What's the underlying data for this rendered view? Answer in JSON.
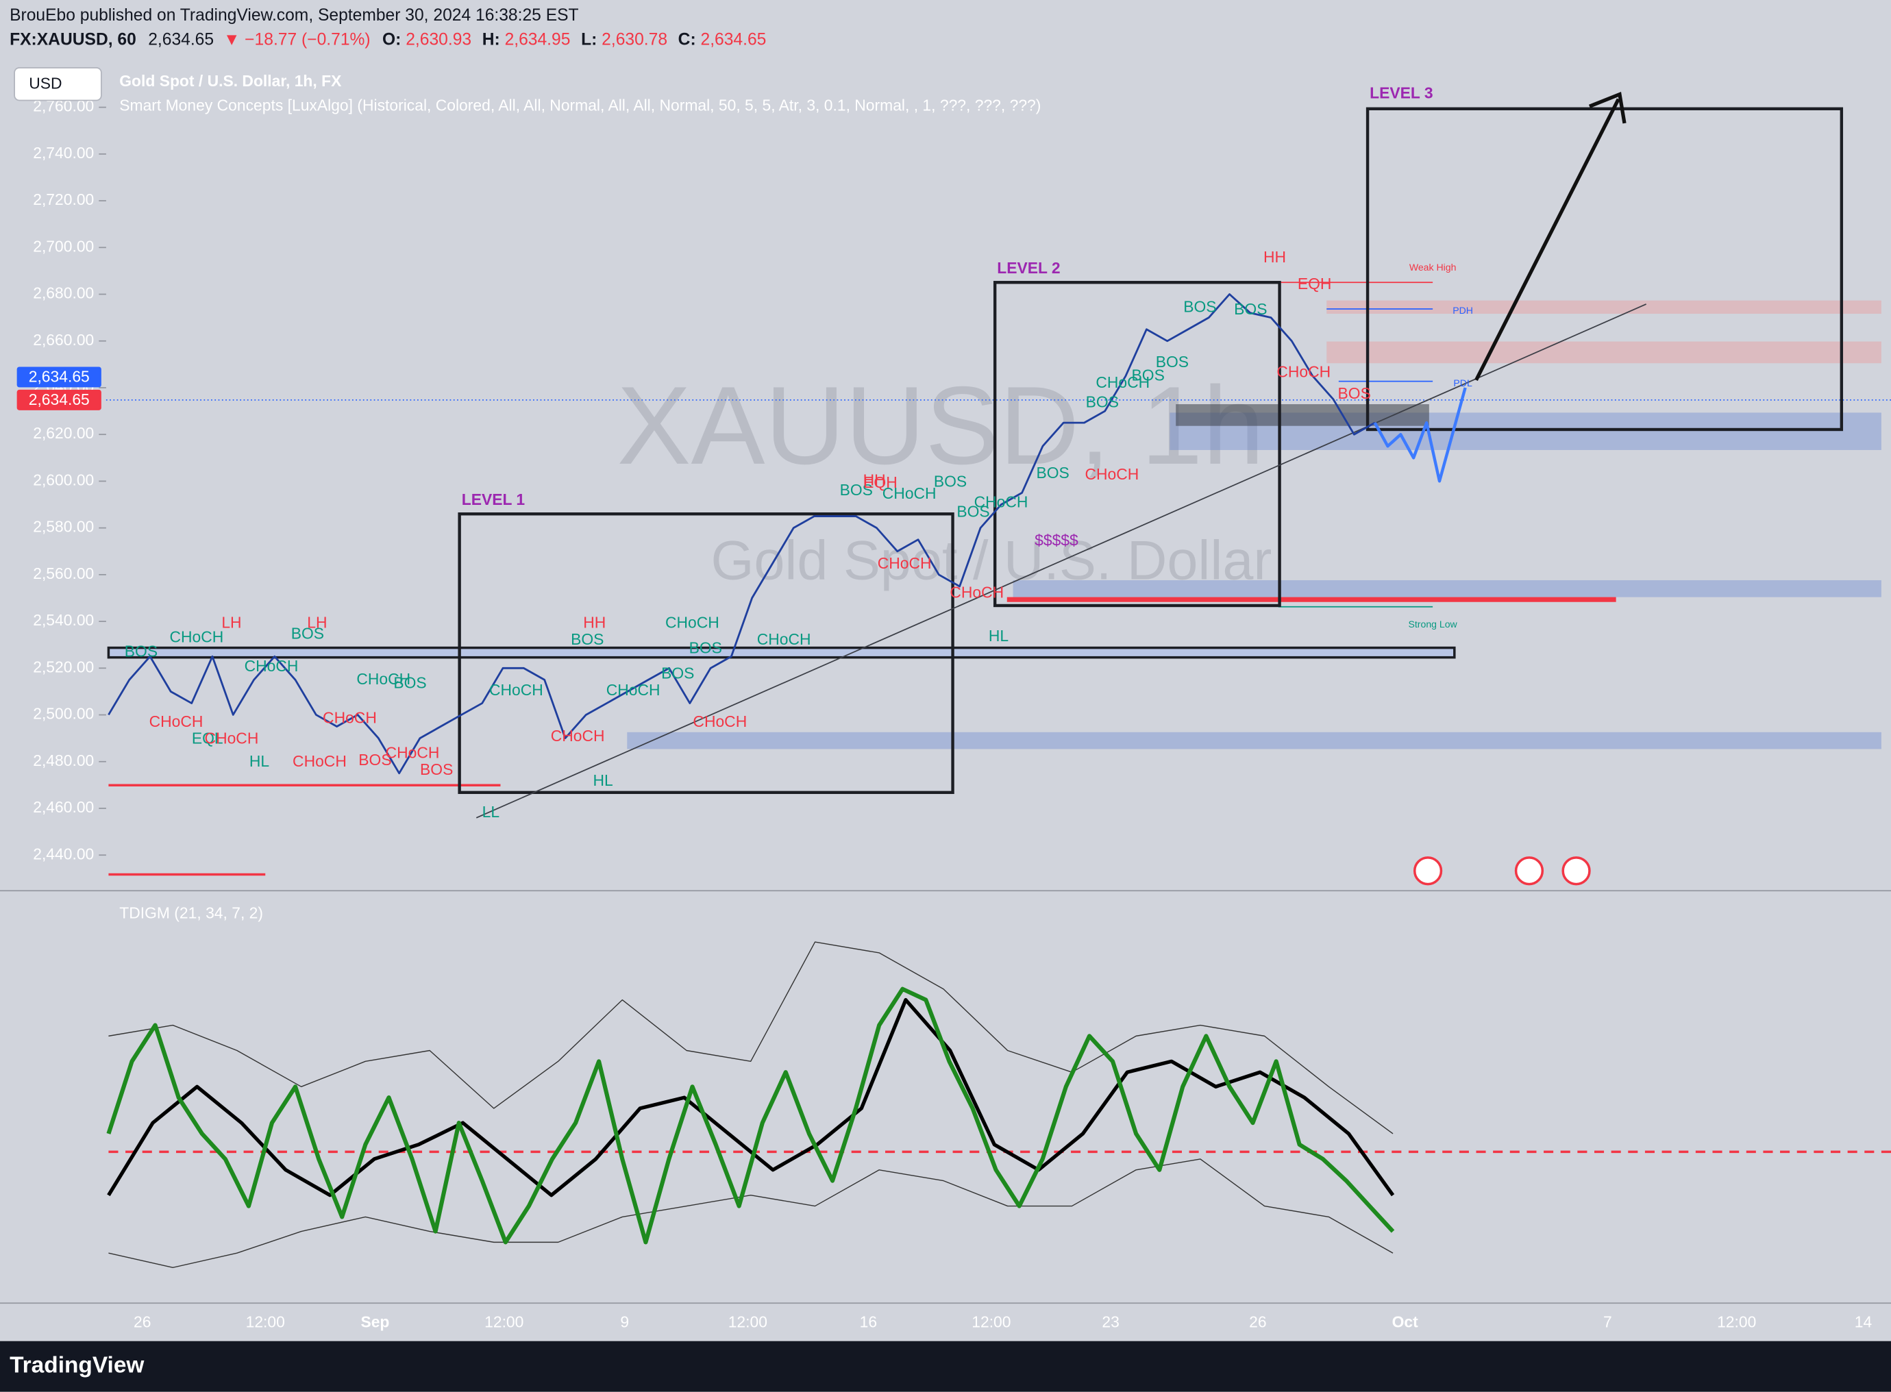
{
  "header": {
    "publisher": "BrouEbo published on TradingView.com, September 30, 2024 16:38:25 EST",
    "symbol": "FX:XAUUSD, 60",
    "last": "2,634.65",
    "change": "▼ −18.77 (−0.71%)",
    "open_label": "O:",
    "open": "2,630.93",
    "high_label": "H:",
    "high": "2,634.95",
    "low_label": "L:",
    "low": "2,630.78",
    "close_label": "C:",
    "close": "2,634.65"
  },
  "currency_button": "USD",
  "legend": {
    "main": "Gold Spot / U.S. Dollar, 1h, FX",
    "study": "Smart Money Concepts [LuxAlgo] (Historical, Colored, All, All, Normal, All, All, Normal, 50, 5, 5, Atr, 3, 0.1, Normal, , 1, ???, ???, ???)"
  },
  "watermark": {
    "symbol": "XAUUSD, 1h",
    "description": "Gold Spot / U.S. Dollar"
  },
  "price_tags": [
    "2,634.65",
    "2,634.65"
  ],
  "chart_data": {
    "type": "line",
    "ylim": [
      2425,
      2780
    ],
    "yticks": [
      {
        "value": 2440,
        "label": "2,440.00"
      },
      {
        "value": 2460,
        "label": "2,460.00"
      },
      {
        "value": 2480,
        "label": "2,480.00"
      },
      {
        "value": 2500,
        "label": "2,500.00"
      },
      {
        "value": 2520,
        "label": "2,520.00"
      },
      {
        "value": 2540,
        "label": "2,540.00"
      },
      {
        "value": 2560,
        "label": "2,560.00"
      },
      {
        "value": 2580,
        "label": "2,580.00"
      },
      {
        "value": 2600,
        "label": "2,600.00"
      },
      {
        "value": 2620,
        "label": "2,620.00"
      },
      {
        "value": 2640,
        "label": "2,640.00"
      },
      {
        "value": 2660,
        "label": "2,660.00"
      },
      {
        "value": 2680,
        "label": "2,680.00"
      },
      {
        "value": 2700,
        "label": "2,700.00"
      },
      {
        "value": 2720,
        "label": "2,720.00"
      },
      {
        "value": 2740,
        "label": "2,740.00"
      },
      {
        "value": 2760,
        "label": "2,760.00"
      }
    ],
    "x_labels": [
      "26",
      "12:00",
      "Sep",
      "12:00",
      "9",
      "12:00",
      "16",
      "12:00",
      "23",
      "26",
      "Oct",
      "7",
      "12:00",
      "14"
    ],
    "series": [
      {
        "color": "#1f3f9e",
        "values": [
          2500,
          2515,
          2525,
          2510,
          2505,
          2525,
          2500,
          2515,
          2525,
          2515,
          2500,
          2495,
          2500,
          2490,
          2475,
          2490,
          2495,
          2500,
          2505,
          2520,
          2520,
          2515,
          2490,
          2500,
          2505,
          2510,
          2515,
          2520,
          2505,
          2520,
          2525,
          2550,
          2565,
          2580,
          2585,
          2585,
          2585,
          2580,
          2570,
          2575,
          2560,
          2555,
          2580,
          2590,
          2595,
          2615,
          2625,
          2625,
          2630,
          2645,
          2665,
          2660,
          2665,
          2670,
          2680,
          2672,
          2670,
          2660,
          2645,
          2635,
          2620,
          2625
        ]
      },
      {
        "color": "#3d7bff",
        "values": [
          2625,
          2615,
          2620,
          2610,
          2625,
          2600,
          2620,
          2640
        ]
      }
    ]
  },
  "indicator": {
    "title": "TDIGM (21, 34, 7, 2)",
    "ylim": [
      0,
      100
    ],
    "signal_level": 35,
    "signal_color": "#f23645",
    "series": [
      {
        "color": "#1e8a1e",
        "values": [
          40,
          60,
          70,
          50,
          40,
          33,
          20,
          43,
          53,
          33,
          17,
          37,
          50,
          33,
          13,
          43,
          27,
          10,
          20,
          33,
          43,
          60,
          33,
          10,
          33,
          53,
          37,
          20,
          43,
          57,
          40,
          27,
          47,
          70,
          80,
          77,
          60,
          47,
          30,
          20,
          33,
          53,
          67,
          60,
          40,
          30,
          53,
          67,
          53,
          43,
          60,
          37,
          33,
          27,
          20,
          13
        ]
      },
      {
        "color": "#000000",
        "values": [
          23,
          43,
          53,
          43,
          30,
          23,
          33,
          37,
          43,
          33,
          23,
          33,
          47,
          50,
          40,
          30,
          37,
          47,
          77,
          63,
          37,
          30,
          40,
          57,
          60,
          53,
          57,
          50,
          40,
          23
        ]
      },
      {
        "color": "#333333",
        "values": [
          67,
          70,
          63,
          53,
          60,
          63,
          47,
          60,
          77,
          63,
          60,
          93,
          90,
          80,
          63,
          57,
          67,
          70,
          67,
          53,
          40
        ]
      },
      {
        "color": "#333333",
        "values": [
          7,
          3,
          7,
          13,
          17,
          13,
          10,
          10,
          17,
          20,
          23,
          20,
          30,
          27,
          20,
          20,
          30,
          33,
          20,
          17,
          7
        ]
      }
    ]
  },
  "zones": [
    {
      "label": "LEVEL 1",
      "color": "#9c27b0"
    },
    {
      "label": "LEVEL 2",
      "color": "#9c27b0"
    },
    {
      "label": "LEVEL 3",
      "color": "#9c27b0"
    }
  ],
  "annotations": [
    {
      "text": "BOS",
      "color": "#089981"
    },
    {
      "text": "CHoCH",
      "color": "#089981"
    },
    {
      "text": "LH",
      "color": "#f23645"
    },
    {
      "text": "CHoCH",
      "color": "#089981"
    },
    {
      "text": "BOS",
      "color": "#089981"
    },
    {
      "text": "LH",
      "color": "#f23645"
    },
    {
      "text": "CHoCH",
      "color": "#089981"
    },
    {
      "text": "BOS",
      "color": "#089981"
    },
    {
      "text": "CHoCH",
      "color": "#f23645"
    },
    {
      "text": "EQL",
      "color": "#089981"
    },
    {
      "text": "CHoCH",
      "color": "#f23645"
    },
    {
      "text": "HL",
      "color": "#089981"
    },
    {
      "text": "CHoCH",
      "color": "#f23645"
    },
    {
      "text": "CHoCH",
      "color": "#f23645"
    },
    {
      "text": "BOS",
      "color": "#f23645"
    },
    {
      "text": "CHoCH",
      "color": "#f23645"
    },
    {
      "text": "BOS",
      "color": "#f23645"
    },
    {
      "text": "LL",
      "color": "#089981"
    },
    {
      "text": "CHoCH",
      "color": "#089981"
    },
    {
      "text": "HH",
      "color": "#f23645"
    },
    {
      "text": "BOS",
      "color": "#089981"
    },
    {
      "text": "CHoCH",
      "color": "#089981"
    },
    {
      "text": "CHoCH",
      "color": "#f23645"
    },
    {
      "text": "HL",
      "color": "#089981"
    },
    {
      "text": "CHoCH",
      "color": "#089981"
    },
    {
      "text": "BOS",
      "color": "#089981"
    },
    {
      "text": "BOS",
      "color": "#089981"
    },
    {
      "text": "CHoCH",
      "color": "#f23645"
    },
    {
      "text": "CHoCH",
      "color": "#089981"
    },
    {
      "text": "BOS",
      "color": "#089981"
    },
    {
      "text": "HH",
      "color": "#f23645"
    },
    {
      "text": "EQH",
      "color": "#f23645"
    },
    {
      "text": "CHoCH",
      "color": "#089981"
    },
    {
      "text": "BOS",
      "color": "#089981"
    },
    {
      "text": "BOS",
      "color": "#089981"
    },
    {
      "text": "CHoCH",
      "color": "#089981"
    },
    {
      "text": "CHoCH",
      "color": "#f23645"
    },
    {
      "text": "CHoCH",
      "color": "#f23645"
    },
    {
      "text": "HL",
      "color": "#089981"
    },
    {
      "text": "$$$$$",
      "color": "#9c27b0"
    },
    {
      "text": "BOS",
      "color": "#089981"
    },
    {
      "text": "CHoCH",
      "color": "#f23645"
    },
    {
      "text": "BOS",
      "color": "#089981"
    },
    {
      "text": "CHoCH",
      "color": "#089981"
    },
    {
      "text": "BOS",
      "color": "#089981"
    },
    {
      "text": "BOS",
      "color": "#089981"
    },
    {
      "text": "BOS",
      "color": "#089981"
    },
    {
      "text": "BOS",
      "color": "#089981"
    },
    {
      "text": "HH",
      "color": "#f23645"
    },
    {
      "text": "EQH",
      "color": "#f23645"
    },
    {
      "text": "CHoCH",
      "color": "#f23645"
    },
    {
      "text": "BOS",
      "color": "#f23645"
    }
  ],
  "level_labels": [
    {
      "text": "Weak High",
      "color": "#f23645"
    },
    {
      "text": "PDH",
      "color": "#2962ff"
    },
    {
      "text": "PDL",
      "color": "#2962ff"
    },
    {
      "text": "Strong Low",
      "color": "#089981"
    }
  ],
  "branding": "TradingView"
}
